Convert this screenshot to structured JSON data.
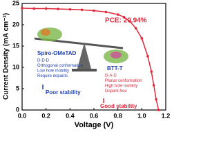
{
  "chart_data": {
    "type": "line",
    "x": [
      0,
      0.1,
      0.2,
      0.3,
      0.4,
      0.5,
      0.6,
      0.7,
      0.8,
      0.85,
      0.9,
      0.95,
      1.0,
      1.05,
      1.08,
      1.1,
      1.12,
      1.14
    ],
    "series": [
      {
        "color": "#e0283a",
        "values": [
          23.9,
          23.8,
          23.8,
          23.7,
          23.6,
          23.5,
          23.3,
          23.0,
          22.4,
          21.8,
          20.8,
          19.2,
          16.8,
          12.6,
          9.0,
          5.8,
          2.5,
          0
        ]
      }
    ],
    "xlabel": "Voltage (V)",
    "ylabel": "Current Density (mA cm⁻²)",
    "xlim": [
      0,
      1.2
    ],
    "xticks": [
      {
        "value": 0,
        "label": "0.0"
      },
      {
        "value": 0.2,
        "label": "0.2"
      },
      {
        "value": 0.4,
        "label": "0.4"
      },
      {
        "value": 0.6,
        "label": "0.6"
      },
      {
        "value": 0.8,
        "label": "0.8"
      },
      {
        "value": 1.0,
        "label": "1.0"
      },
      {
        "value": 1.2,
        "label": "1.2"
      }
    ],
    "ylim": [
      0,
      25
    ],
    "yticks": [
      0,
      5,
      10,
      15,
      20,
      25
    ],
    "annotations": {
      "pce": "PCE: 20.94%",
      "left": {
        "name": "Spiro-OMeTAD",
        "points": [
          "D-D-D",
          "Orthogonal conformation",
          "Low hole mobility",
          "Require dopants"
        ],
        "verdict": "Poor stability"
      },
      "right": {
        "name": "BTT-T",
        "points": [
          "D-A-D",
          "Planar conformation",
          "High hole mobility",
          "Dopant-free"
        ],
        "verdict": "Good stability"
      }
    }
  }
}
